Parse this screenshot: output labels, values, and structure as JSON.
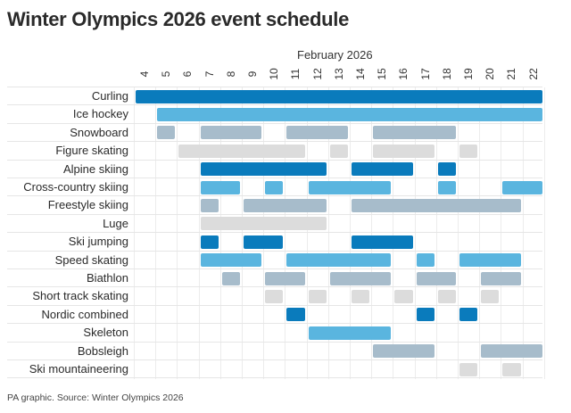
{
  "title": "Winter Olympics 2026 event schedule",
  "month_label": "February 2026",
  "footer": "PA graphic. Source: Winter Olympics 2026",
  "colors": {
    "dark_blue": "#0a7bbc",
    "light_blue": "#5ab5df",
    "grey_blue": "#a7bccb",
    "light_grey": "#dcdcdc"
  },
  "chart_data": {
    "type": "table",
    "title": "Winter Olympics 2026 event schedule",
    "xlabel": "February 2026",
    "days": [
      4,
      5,
      6,
      7,
      8,
      9,
      10,
      11,
      12,
      13,
      14,
      15,
      16,
      17,
      18,
      19,
      20,
      21,
      22
    ],
    "events": [
      {
        "name": "Curling",
        "color": "dark_blue",
        "ranges": [
          [
            4,
            22
          ]
        ]
      },
      {
        "name": "Ice hockey",
        "color": "light_blue",
        "ranges": [
          [
            5,
            22
          ]
        ]
      },
      {
        "name": "Snowboard",
        "color": "grey_blue",
        "ranges": [
          [
            5,
            5
          ],
          [
            7,
            9
          ],
          [
            11,
            13
          ],
          [
            15,
            18
          ]
        ]
      },
      {
        "name": "Figure skating",
        "color": "light_grey",
        "ranges": [
          [
            6,
            11
          ],
          [
            13,
            13
          ],
          [
            15,
            17
          ],
          [
            19,
            19
          ]
        ]
      },
      {
        "name": "Alpine skiing",
        "color": "dark_blue",
        "ranges": [
          [
            7,
            12
          ],
          [
            14,
            16
          ],
          [
            18,
            18
          ]
        ]
      },
      {
        "name": "Cross-country skiing",
        "color": "light_blue",
        "ranges": [
          [
            7,
            8
          ],
          [
            10,
            10
          ],
          [
            12,
            15
          ],
          [
            18,
            18
          ],
          [
            21,
            22
          ]
        ]
      },
      {
        "name": "Freestyle skiing",
        "color": "grey_blue",
        "ranges": [
          [
            7,
            7
          ],
          [
            9,
            12
          ],
          [
            14,
            21
          ]
        ]
      },
      {
        "name": "Luge",
        "color": "light_grey",
        "ranges": [
          [
            7,
            12
          ]
        ]
      },
      {
        "name": "Ski jumping",
        "color": "dark_blue",
        "ranges": [
          [
            7,
            7
          ],
          [
            9,
            10
          ],
          [
            14,
            16
          ]
        ]
      },
      {
        "name": "Speed skating",
        "color": "light_blue",
        "ranges": [
          [
            7,
            9
          ],
          [
            11,
            15
          ],
          [
            17,
            17
          ],
          [
            19,
            21
          ]
        ]
      },
      {
        "name": "Biathlon",
        "color": "grey_blue",
        "ranges": [
          [
            8,
            8
          ],
          [
            10,
            11
          ],
          [
            13,
            15
          ],
          [
            17,
            18
          ],
          [
            20,
            21
          ]
        ]
      },
      {
        "name": "Short track skating",
        "color": "light_grey",
        "ranges": [
          [
            10,
            10
          ],
          [
            12,
            12
          ],
          [
            14,
            14
          ],
          [
            16,
            16
          ],
          [
            18,
            18
          ],
          [
            20,
            20
          ]
        ]
      },
      {
        "name": "Nordic combined",
        "color": "dark_blue",
        "ranges": [
          [
            11,
            11
          ],
          [
            17,
            17
          ],
          [
            19,
            19
          ]
        ]
      },
      {
        "name": "Skeleton",
        "color": "light_blue",
        "ranges": [
          [
            12,
            15
          ]
        ]
      },
      {
        "name": "Bobsleigh",
        "color": "grey_blue",
        "ranges": [
          [
            15,
            17
          ],
          [
            20,
            22
          ]
        ]
      },
      {
        "name": "Ski mountaineering",
        "color": "light_grey",
        "ranges": [
          [
            19,
            19
          ],
          [
            21,
            21
          ]
        ]
      }
    ]
  }
}
